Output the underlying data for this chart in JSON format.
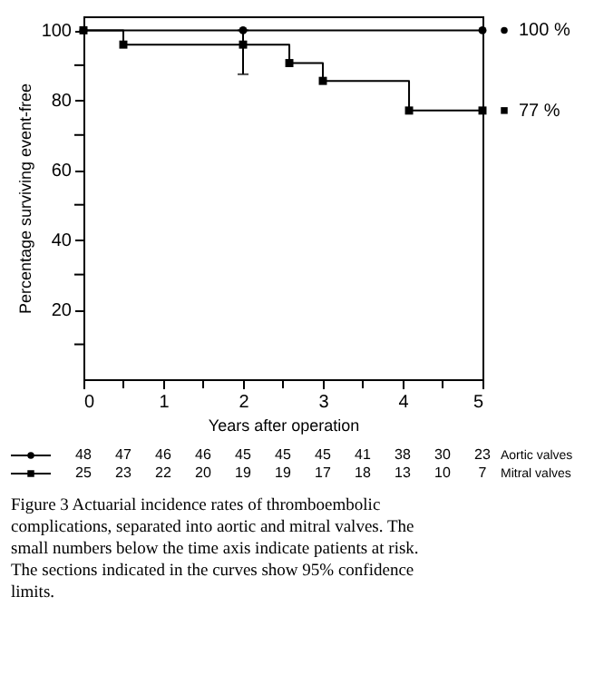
{
  "chart_data": {
    "type": "step",
    "xlabel": "Years after operation",
    "ylabel": "Percentage surviving event-free",
    "xlim": [
      0,
      5
    ],
    "xticks": [
      0,
      {
        "value": 0.5,
        "label": null
      },
      1,
      {
        "value": 1.5,
        "label": null
      },
      2,
      {
        "value": 2.5,
        "label": null
      },
      3,
      {
        "value": 3.5,
        "label": null
      },
      4,
      {
        "value": 4.5,
        "label": null
      },
      5
    ],
    "ylim": [
      0,
      104
    ],
    "yticks": [
      {
        "value": 10,
        "label": null
      },
      20,
      {
        "value": 30,
        "label": null
      },
      40,
      {
        "value": 50,
        "label": null
      },
      60,
      {
        "value": 70,
        "label": null
      },
      80,
      {
        "value": 90,
        "label": null
      },
      100
    ],
    "grid": false,
    "legend": "bottom",
    "series": [
      {
        "name": "Aortic valves",
        "color": "#000000",
        "marker": "circle",
        "x": [
          0,
          2,
          5
        ],
        "values": [
          100,
          100,
          100
        ]
      },
      {
        "name": "Mitral valves",
        "color": "#000000",
        "marker": "square",
        "x": [
          0,
          0.5,
          2,
          2.58,
          3,
          4.08,
          5
        ],
        "values": [
          100,
          95.9,
          95.9,
          90.6,
          85.5,
          77,
          77
        ],
        "errors": [
          null,
          null,
          [
            87.4,
            100
          ],
          null,
          null,
          null,
          null
        ]
      }
    ],
    "annotations": [
      {
        "text": "100 %",
        "x": 5,
        "y": 100
      },
      {
        "text": "77 %",
        "x": 5,
        "y": 77
      },
      "48 47 46 46 45 45 45 41 38 30 23",
      "25 23 22 20 19 19 17 18 13 10 7",
      "Figure 3  Actuarial incidence rates of thromboembolic complications, separated into aortic and mitral valves. The small numbers below the time axis indicate patients at risk. The sections indicated in the curves show 95% confidence limits."
    ]
  }
}
